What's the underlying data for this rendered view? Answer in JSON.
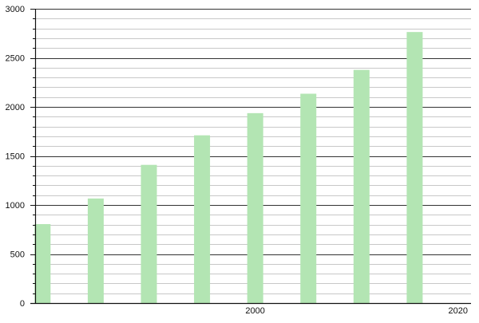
{
  "chart_data": {
    "type": "bar",
    "title": "",
    "xlabel": "",
    "ylabel": "",
    "x": [
      1980,
      1985,
      1990,
      1995,
      2000,
      2005,
      2010,
      2015
    ],
    "values": [
      805,
      1066,
      1409,
      1710,
      1936,
      2134,
      2377,
      2763
    ],
    "xlim": [
      1979.3,
      2020.3
    ],
    "ylim": [
      0,
      3000
    ],
    "x_ticks": [
      2000,
      2020
    ],
    "x_tick_labels": [
      "2000",
      "2020"
    ],
    "y_ticks": [
      0,
      500,
      1000,
      1500,
      2000,
      2500,
      3000
    ],
    "y_tick_labels": [
      "0",
      "500",
      "1000",
      "1500",
      "2000",
      "2500",
      "3000"
    ],
    "y_minor_step": 100,
    "grid": true,
    "legend": "none",
    "colors": {
      "bar": "#b3e5b3",
      "major_grid": "#333333",
      "minor_grid": "#c8c8c8"
    }
  }
}
